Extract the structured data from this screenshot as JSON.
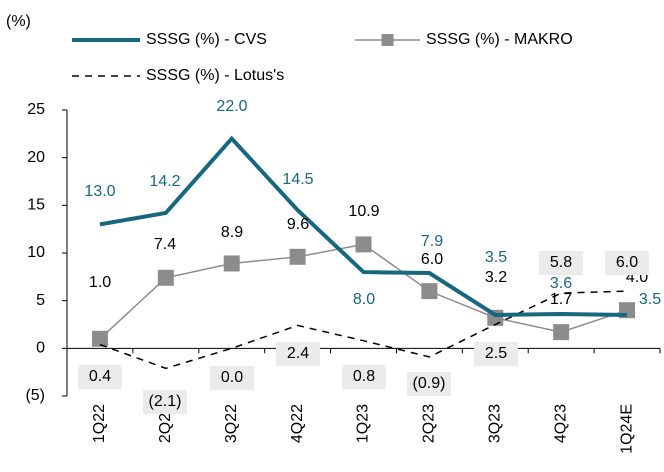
{
  "chart_data": {
    "type": "line",
    "unit_label": "(%)",
    "categories": [
      "1Q22",
      "2Q22",
      "3Q22",
      "4Q22",
      "1Q23",
      "2Q23",
      "3Q23",
      "4Q23",
      "1Q24E"
    ],
    "series": [
      {
        "name": "SSSG (%) - CVS",
        "color": "#17677f",
        "style": "solid",
        "marker": "none",
        "values": [
          13.0,
          14.2,
          22.0,
          14.5,
          8.0,
          7.9,
          3.5,
          3.6,
          3.5
        ],
        "value_labels": [
          "13.0",
          "14.2",
          "22.0",
          "14.5",
          "8.0",
          "7.9",
          "3.5",
          "3.6",
          "3.5"
        ]
      },
      {
        "name": "SSSG (%) - MAKRO",
        "color": "#8c8c8c",
        "style": "solid",
        "marker": "square",
        "values": [
          1.0,
          7.4,
          8.9,
          9.6,
          10.9,
          6.0,
          3.2,
          1.7,
          4.0
        ],
        "value_labels": [
          "1.0",
          "7.4",
          "8.9",
          "9.6",
          "10.9",
          "6.0",
          "3.2",
          "1.7",
          "4.0"
        ]
      },
      {
        "name": "SSSG (%) - Lotus's",
        "color": "#000000",
        "style": "dashed",
        "marker": "none",
        "values": [
          0.4,
          -2.1,
          0.0,
          2.4,
          0.8,
          -0.9,
          2.5,
          5.8,
          6.0
        ],
        "value_labels": [
          "0.4",
          "(2.1)",
          "0.0",
          "2.4",
          "0.8",
          "(0.9)",
          "2.5",
          "5.8",
          "6.0"
        ]
      }
    ],
    "ylim": [
      -5,
      25
    ],
    "yticks": [
      {
        "value": -5,
        "label": "(5)"
      },
      0,
      5,
      10,
      15,
      20,
      25
    ],
    "grid": false
  }
}
